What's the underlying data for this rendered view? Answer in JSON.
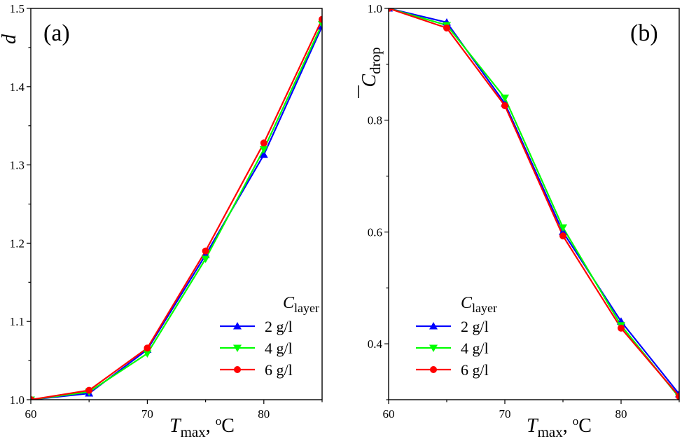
{
  "chart_data": [
    {
      "type": "line",
      "panel_label": "(a)",
      "xlabel": {
        "symbol": "T",
        "subscript": "max",
        "unit_prefix": ", ",
        "unit_sup": "o",
        "unit": "C"
      },
      "ylabel": {
        "symbol": "d",
        "overbar": true
      },
      "xlim": [
        60,
        85
      ],
      "ylim": [
        1.0,
        1.5
      ],
      "xticks": [
        60,
        70,
        80
      ],
      "xtick_labels": [
        "60",
        "70",
        "80"
      ],
      "yticks": [
        1.0,
        1.1,
        1.2,
        1.3,
        1.4,
        1.5
      ],
      "ytick_labels": [
        "1.0",
        "1.1",
        "1.2",
        "1.3",
        "1.4",
        "1.5"
      ],
      "x": [
        60,
        65,
        70,
        75,
        80,
        85
      ],
      "legend": {
        "title_symbol": "C",
        "title_subscript": "layer",
        "position": "bottom-right"
      },
      "series": [
        {
          "name": "2 g/l",
          "color": "#0000ff",
          "marker": "triangle-up",
          "values": [
            1.0,
            1.008,
            1.064,
            1.185,
            1.313,
            1.477
          ]
        },
        {
          "name": "4 g/l",
          "color": "#00ff00",
          "marker": "triangle-down",
          "values": [
            1.0,
            1.01,
            1.059,
            1.18,
            1.32,
            1.48
          ]
        },
        {
          "name": "6 g/l",
          "color": "#ff0000",
          "marker": "circle",
          "values": [
            1.0,
            1.012,
            1.066,
            1.19,
            1.328,
            1.486
          ]
        }
      ]
    },
    {
      "type": "line",
      "panel_label": "(b)",
      "xlabel": {
        "symbol": "T",
        "subscript": "max",
        "unit_prefix": ", ",
        "unit_sup": "o",
        "unit": "C"
      },
      "ylabel": {
        "symbol": "C",
        "subscript": "drop",
        "overbar": true
      },
      "xlim": [
        60,
        85
      ],
      "ylim": [
        0.3,
        1.0
      ],
      "xticks": [
        60,
        70,
        80
      ],
      "xtick_labels": [
        "60",
        "70",
        "80"
      ],
      "yticks": [
        0.4,
        0.6,
        0.8,
        1.0
      ],
      "ytick_labels": [
        "0.4",
        "0.6",
        "0.8",
        "1.0"
      ],
      "x": [
        60,
        65,
        70,
        75,
        80,
        85
      ],
      "legend": {
        "title_symbol": "C",
        "title_subscript": "layer",
        "position": "bottom-center"
      },
      "series": [
        {
          "name": "2 g/l",
          "color": "#0000ff",
          "marker": "triangle-up",
          "values": [
            1.0,
            0.975,
            0.83,
            0.6,
            0.44,
            0.31
          ]
        },
        {
          "name": "4 g/l",
          "color": "#00ff00",
          "marker": "triangle-down",
          "values": [
            1.0,
            0.97,
            0.84,
            0.608,
            0.433,
            0.304
          ]
        },
        {
          "name": "6 g/l",
          "color": "#ff0000",
          "marker": "circle",
          "values": [
            1.0,
            0.965,
            0.826,
            0.593,
            0.428,
            0.306
          ]
        }
      ]
    }
  ]
}
